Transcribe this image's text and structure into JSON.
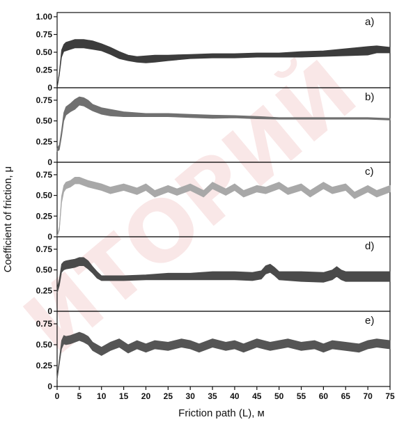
{
  "chart_data": {
    "type": "line",
    "xlabel": "Friction path (L), м",
    "ylabel": "Coefficient of friction, μ",
    "x_ticks": [
      "0",
      "5",
      "10",
      "15",
      "20",
      "25",
      "30",
      "35",
      "40",
      "45",
      "50",
      "55",
      "60",
      "65",
      "70",
      "75"
    ],
    "xlim": [
      0,
      75
    ],
    "watermark": "ИТОРИЙ",
    "panels": [
      {
        "label": "a)",
        "ylim": [
          0,
          1.0
        ],
        "y_ticks": [
          "0",
          "0.25",
          "0.50",
          "0.75",
          "1.00"
        ],
        "y_tick_values": [
          0,
          0.25,
          0.5,
          0.75,
          1.0
        ],
        "color": "#3c3c3c",
        "x": [
          0,
          0.5,
          1,
          1.5,
          2,
          3,
          4,
          5,
          6,
          8,
          10,
          12,
          14,
          16,
          18,
          20,
          22,
          25,
          30,
          35,
          40,
          45,
          50,
          55,
          60,
          65,
          70,
          72,
          75
        ],
        "y": [
          0,
          0.2,
          0.48,
          0.56,
          0.58,
          0.6,
          0.62,
          0.62,
          0.62,
          0.6,
          0.57,
          0.52,
          0.46,
          0.42,
          0.4,
          0.4,
          0.41,
          0.42,
          0.44,
          0.45,
          0.45,
          0.46,
          0.46,
          0.47,
          0.48,
          0.5,
          0.52,
          0.54,
          0.53
        ],
        "band": [
          0,
          0.02,
          0.05,
          0.05,
          0.06,
          0.06,
          0.06,
          0.06,
          0.06,
          0.06,
          0.05,
          0.05,
          0.05,
          0.04,
          0.04,
          0.05,
          0.05,
          0.04,
          0.03,
          0.03,
          0.03,
          0.03,
          0.03,
          0.04,
          0.04,
          0.05,
          0.06,
          0.05,
          0.04
        ]
      },
      {
        "label": "b)",
        "ylim": [
          0,
          0.85
        ],
        "y_ticks": [
          "0",
          "0.25",
          "0.50",
          "0.75"
        ],
        "y_tick_values": [
          0,
          0.25,
          0.5,
          0.75
        ],
        "color": "#707070",
        "x": [
          0,
          0.5,
          1,
          1.5,
          2,
          3,
          4,
          5,
          6,
          7,
          8,
          10,
          12,
          15,
          20,
          25,
          30,
          35,
          40,
          45,
          50,
          55,
          60,
          65,
          70,
          75
        ],
        "y": [
          0.15,
          0.18,
          0.35,
          0.55,
          0.62,
          0.66,
          0.7,
          0.74,
          0.73,
          0.7,
          0.66,
          0.62,
          0.6,
          0.58,
          0.57,
          0.57,
          0.56,
          0.55,
          0.55,
          0.54,
          0.53,
          0.53,
          0.53,
          0.53,
          0.53,
          0.52
        ],
        "band": [
          0.02,
          0.03,
          0.04,
          0.05,
          0.05,
          0.05,
          0.06,
          0.05,
          0.05,
          0.05,
          0.04,
          0.04,
          0.04,
          0.03,
          0.02,
          0.02,
          0.02,
          0.02,
          0.015,
          0.015,
          0.01,
          0.01,
          0.01,
          0.01,
          0.01,
          0.01
        ]
      },
      {
        "label": "c)",
        "ylim": [
          0,
          0.85
        ],
        "y_ticks": [
          "0",
          "0.25",
          "0.50",
          "0.75"
        ],
        "y_tick_values": [
          0,
          0.25,
          0.5,
          0.75
        ],
        "color": "#a8a8a8",
        "x": [
          0,
          0.5,
          1,
          1.5,
          2,
          3,
          4,
          5,
          7,
          10,
          12,
          15,
          18,
          20,
          22,
          25,
          27,
          30,
          33,
          35,
          38,
          40,
          42,
          45,
          47,
          50,
          52,
          55,
          57,
          60,
          62,
          65,
          67,
          70,
          72,
          75
        ],
        "y": [
          0,
          0.1,
          0.45,
          0.58,
          0.62,
          0.64,
          0.68,
          0.68,
          0.64,
          0.6,
          0.56,
          0.6,
          0.55,
          0.6,
          0.52,
          0.58,
          0.54,
          0.6,
          0.52,
          0.62,
          0.54,
          0.6,
          0.52,
          0.58,
          0.56,
          0.62,
          0.55,
          0.6,
          0.52,
          0.62,
          0.56,
          0.6,
          0.5,
          0.58,
          0.52,
          0.58
        ],
        "band": [
          0.01,
          0.02,
          0.04,
          0.04,
          0.04,
          0.04,
          0.04,
          0.04,
          0.04,
          0.04,
          0.04,
          0.04,
          0.04,
          0.04,
          0.04,
          0.04,
          0.04,
          0.04,
          0.04,
          0.04,
          0.04,
          0.04,
          0.04,
          0.04,
          0.04,
          0.04,
          0.04,
          0.04,
          0.04,
          0.04,
          0.04,
          0.04,
          0.04,
          0.04,
          0.04,
          0.04
        ]
      },
      {
        "label": "d)",
        "ylim": [
          0,
          0.85
        ],
        "y_ticks": [
          "0",
          "0.25",
          "0.50",
          "0.75"
        ],
        "y_tick_values": [
          0,
          0.25,
          0.5,
          0.75
        ],
        "color": "#4a4a4a",
        "x": [
          0,
          0.5,
          1,
          1.5,
          2,
          3,
          4,
          5,
          6,
          7,
          8,
          9,
          10,
          12,
          15,
          20,
          25,
          30,
          35,
          40,
          44,
          46,
          47,
          48,
          49,
          50,
          55,
          60,
          62,
          63,
          64,
          65,
          70,
          75
        ],
        "y": [
          0.25,
          0.35,
          0.52,
          0.55,
          0.56,
          0.57,
          0.58,
          0.6,
          0.6,
          0.56,
          0.5,
          0.44,
          0.4,
          0.4,
          0.4,
          0.41,
          0.42,
          0.42,
          0.43,
          0.43,
          0.42,
          0.44,
          0.5,
          0.52,
          0.48,
          0.43,
          0.42,
          0.41,
          0.44,
          0.48,
          0.44,
          0.42,
          0.42,
          0.42
        ],
        "band": [
          0.03,
          0.04,
          0.05,
          0.05,
          0.05,
          0.05,
          0.05,
          0.05,
          0.05,
          0.05,
          0.04,
          0.04,
          0.03,
          0.03,
          0.03,
          0.03,
          0.04,
          0.04,
          0.05,
          0.05,
          0.05,
          0.05,
          0.05,
          0.05,
          0.05,
          0.05,
          0.06,
          0.06,
          0.06,
          0.06,
          0.06,
          0.06,
          0.06,
          0.06
        ]
      },
      {
        "label": "e)",
        "ylim": [
          0,
          0.85
        ],
        "y_ticks": [
          "0",
          "0.25",
          "0.50",
          "0.75"
        ],
        "y_tick_values": [
          0,
          0.25,
          0.5,
          0.75
        ],
        "color": "#555555",
        "x": [
          0,
          0.5,
          1,
          1.5,
          2,
          3,
          4,
          5,
          6,
          7,
          8,
          10,
          12,
          14,
          16,
          18,
          20,
          22,
          25,
          28,
          30,
          32,
          35,
          38,
          40,
          42,
          45,
          48,
          50,
          52,
          55,
          58,
          60,
          62,
          65,
          68,
          70,
          72,
          75
        ],
        "y": [
          0.1,
          0.3,
          0.5,
          0.56,
          0.55,
          0.56,
          0.58,
          0.6,
          0.58,
          0.55,
          0.48,
          0.42,
          0.48,
          0.52,
          0.45,
          0.5,
          0.46,
          0.5,
          0.48,
          0.52,
          0.5,
          0.46,
          0.52,
          0.48,
          0.5,
          0.46,
          0.52,
          0.48,
          0.5,
          0.52,
          0.48,
          0.5,
          0.46,
          0.5,
          0.48,
          0.46,
          0.5,
          0.52,
          0.5
        ],
        "band": [
          0.02,
          0.03,
          0.05,
          0.05,
          0.05,
          0.05,
          0.05,
          0.05,
          0.05,
          0.05,
          0.05,
          0.05,
          0.05,
          0.05,
          0.05,
          0.05,
          0.05,
          0.05,
          0.05,
          0.05,
          0.05,
          0.05,
          0.05,
          0.05,
          0.05,
          0.05,
          0.05,
          0.05,
          0.05,
          0.05,
          0.05,
          0.05,
          0.05,
          0.05,
          0.05,
          0.05,
          0.05,
          0.05,
          0.05
        ]
      }
    ]
  }
}
